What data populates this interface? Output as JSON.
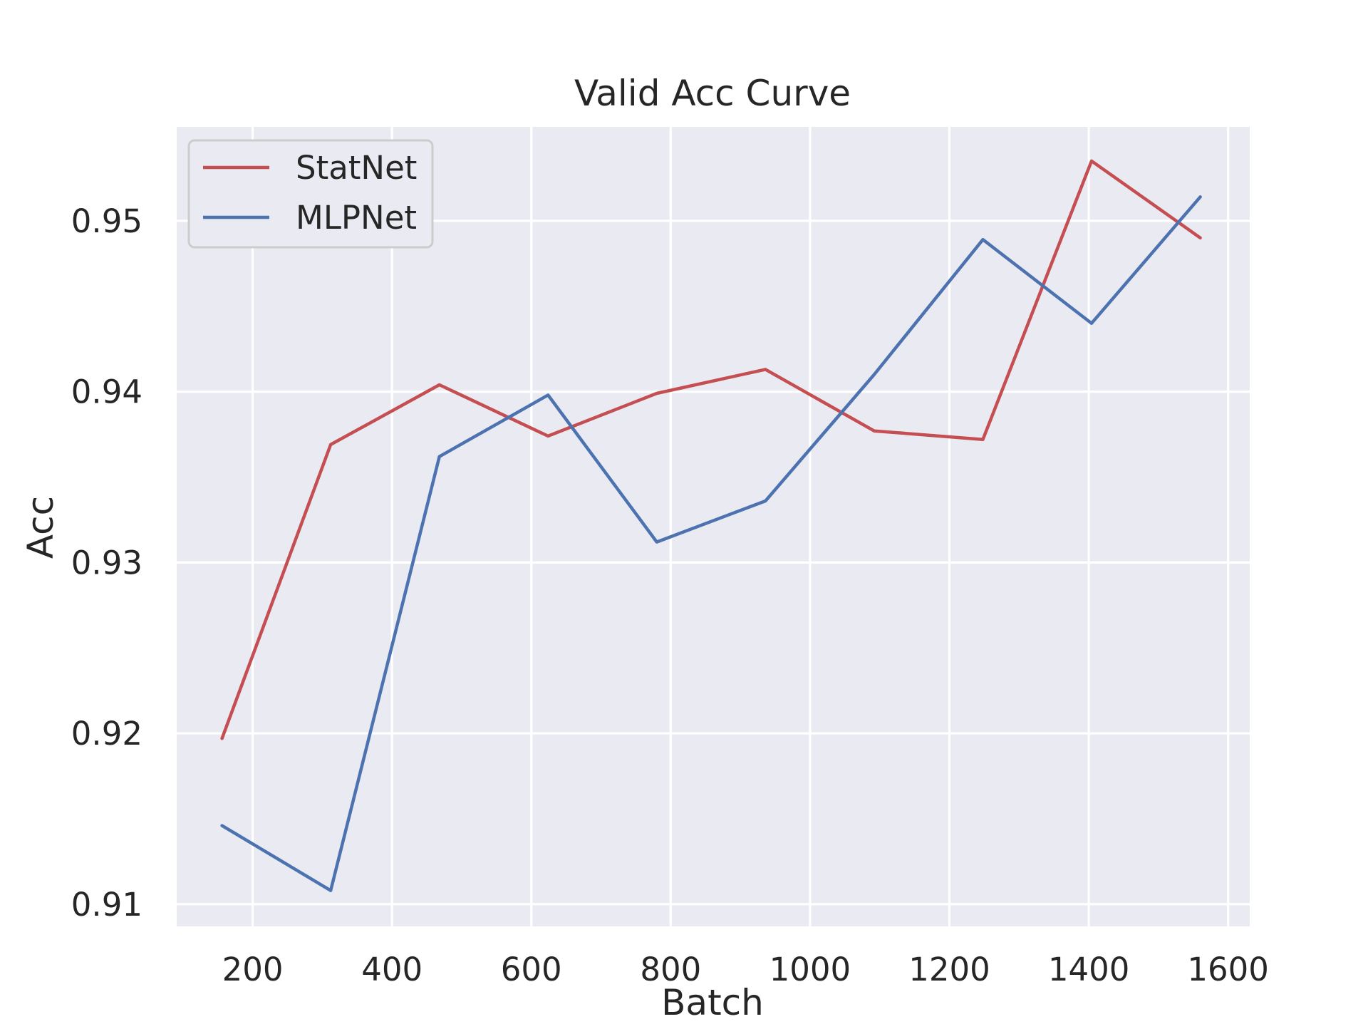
{
  "chart_data": {
    "type": "line",
    "title": "Valid Acc Curve",
    "xlabel": "Batch",
    "ylabel": "Acc",
    "xlim": [
      91,
      1631
    ],
    "ylim": [
      0.9087,
      0.9555
    ],
    "xticks": [
      200,
      400,
      600,
      800,
      1000,
      1200,
      1400,
      1600
    ],
    "xtick_labels": [
      "200",
      "400",
      "600",
      "800",
      "1000",
      "1200",
      "1400",
      "1600"
    ],
    "yticks": [
      0.91,
      0.92,
      0.93,
      0.94,
      0.95
    ],
    "ytick_labels": [
      "0.91",
      "0.92",
      "0.93",
      "0.94",
      "0.95"
    ],
    "grid": true,
    "legend_position": "upper-left",
    "x": [
      156,
      312,
      468,
      624,
      780,
      936,
      1092,
      1248,
      1404,
      1560
    ],
    "series": [
      {
        "name": "StatNet",
        "color": "#c44e52",
        "values": [
          0.9197,
          0.9369,
          0.9404,
          0.9374,
          0.9399,
          0.9413,
          0.9377,
          0.9372,
          0.9535,
          0.949
        ]
      },
      {
        "name": "MLPNet",
        "color": "#4c72b0",
        "values": [
          0.9146,
          0.9108,
          0.9362,
          0.9398,
          0.9312,
          0.9336,
          0.941,
          0.9489,
          0.944,
          0.9514
        ]
      }
    ],
    "colors": {
      "plot_background": "#eaeaf2",
      "grid": "#ffffff",
      "legend_background": "#eaeaf2",
      "legend_border": "#cccccc"
    }
  }
}
